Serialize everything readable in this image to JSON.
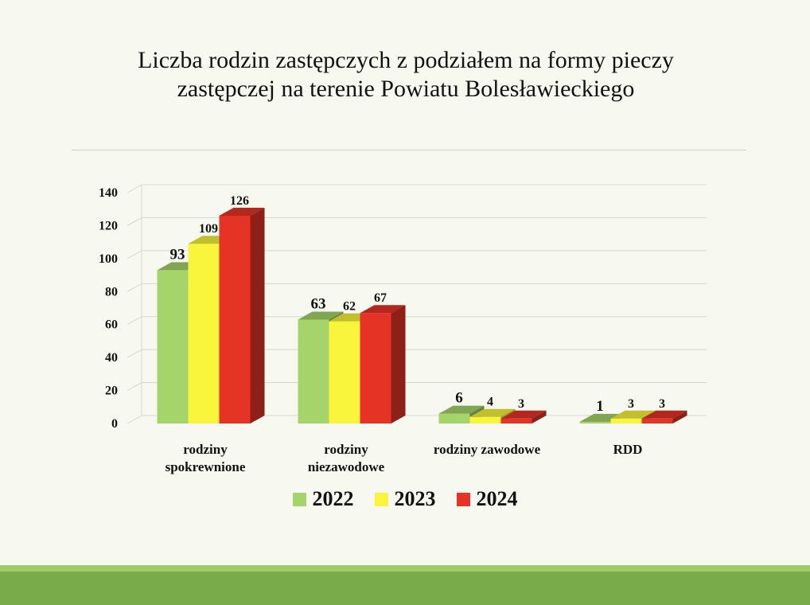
{
  "title_lines": [
    "Liczba rodzin zastępczych z podziałem na formy pieczy",
    "zastępczej na terenie Powiatu Bolesławieckiego"
  ],
  "chart_data": {
    "type": "bar",
    "title": "Liczba rodzin zastępczych z podziałem na formy pieczy zastępczej na terenie Powiatu Bolesławieckiego",
    "categories": [
      [
        "rodziny",
        "spokrewnione"
      ],
      [
        "rodziny",
        "niezawodowe"
      ],
      [
        "rodziny zawodowe"
      ],
      [
        "RDD"
      ]
    ],
    "series": [
      {
        "name": "2022",
        "values": [
          93,
          63,
          6,
          1
        ],
        "color": "#a5d46a"
      },
      {
        "name": "2023",
        "values": [
          109,
          62,
          4,
          3
        ],
        "color": "#f9f53c"
      },
      {
        "name": "2024",
        "values": [
          126,
          67,
          3,
          3
        ],
        "color": "#e53326"
      }
    ],
    "y_ticks": [
      0,
      20,
      40,
      60,
      80,
      100,
      120,
      140
    ],
    "ylim": [
      0,
      140
    ],
    "grid": true,
    "three_d": true,
    "legend_position": "bottom"
  }
}
